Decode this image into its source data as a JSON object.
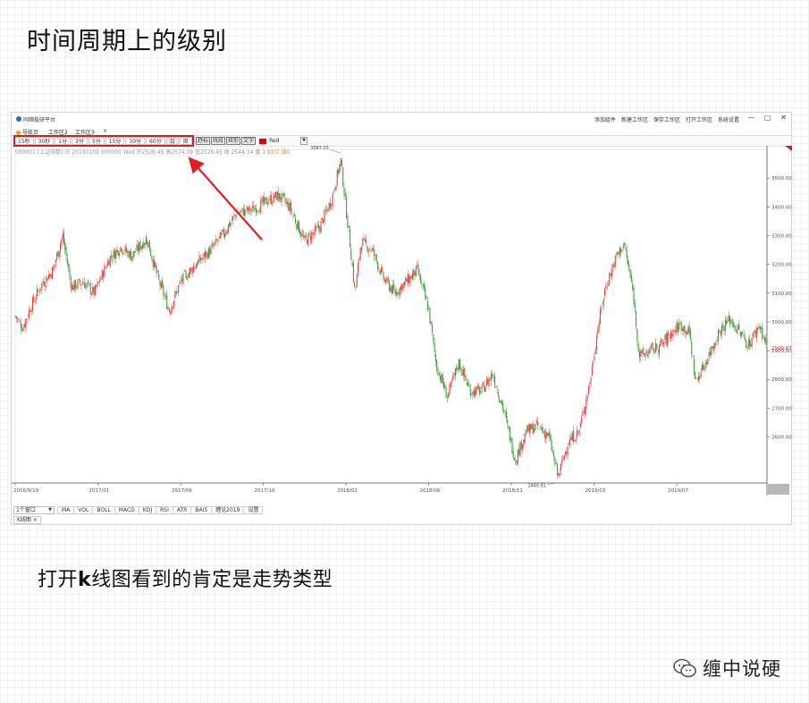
{
  "slide": {
    "title": "时间周期上的级别",
    "caption_pre": "打开",
    "caption_k": "k",
    "caption_post": "线图看到的肯定是走势类型",
    "footer": "缠中说硬"
  },
  "app": {
    "name": "同顺投研平台",
    "menu": [
      "添加组件",
      "新建工作区",
      "保存工作区",
      "打开工作区",
      "系统设置"
    ],
    "window_controls": [
      "—",
      "▢",
      "✕"
    ],
    "tabs": [
      "导航页",
      "工作区2",
      "工作区3"
    ],
    "tab_close": "×",
    "periods": [
      "15秒",
      "30秒",
      "1分",
      "3分",
      "5分",
      "15分",
      "30分",
      "60分",
      "日",
      "周"
    ],
    "active_period": "日",
    "tools": [
      "趋标",
      "线段",
      "矩形",
      "文字"
    ],
    "color_value": "Red",
    "dropdown_arrow": "▼",
    "info_line": "000001 [上证指数] 日 20190109 000000 Wed 开2528.45 高2574.39 低2526.45 收 2544.34 量",
    "info_highlight": "1.91亿 涨0",
    "window_select": "1个窗口",
    "indicators": [
      "MA",
      "VOL",
      "BOLL",
      "MACD",
      "KDJ",
      "RSI",
      "ATR",
      "BAIS",
      "缠论2019",
      "设置"
    ],
    "bottom_tab": "K线图",
    "bottom_tab_close": "×"
  },
  "chart_data": {
    "type": "candlestick",
    "title": "",
    "y_ticks": [
      2600,
      2700,
      2800,
      2900,
      3000,
      3100,
      3200,
      3300,
      3400,
      3500
    ],
    "y_tick_labels": [
      "2600.00",
      "2700.00",
      "2800.00",
      "2900.00",
      "3000.00",
      "3100.00",
      "3200.00",
      "3300.00",
      "3400.00",
      "3500.00"
    ],
    "ylim": [
      2440,
      3600
    ],
    "x_labels": [
      "2016/9/19",
      "2017/01",
      "2017/06",
      "2017/10",
      "2018/02",
      "2018/06",
      "2018/11",
      "2019/03",
      "2019/07"
    ],
    "x_label_positions": [
      0,
      0.11,
      0.22,
      0.33,
      0.44,
      0.55,
      0.66,
      0.77,
      0.88
    ],
    "annotations": [
      {
        "text": "3587.03",
        "date_frac": 0.433,
        "value": 3587.03
      },
      {
        "text": "2440.91",
        "date_frac": 0.722,
        "value": 2440.91
      }
    ],
    "last_price": "2909.87",
    "last_value": 2909.87,
    "up_color": "#e83e3e",
    "down_color": "#3e9b3e",
    "series_close": [
      {
        "t": 0.0,
        "v": 3020
      },
      {
        "t": 0.01,
        "v": 2980
      },
      {
        "t": 0.02,
        "v": 3050
      },
      {
        "t": 0.035,
        "v": 3130
      },
      {
        "t": 0.05,
        "v": 3180
      },
      {
        "t": 0.063,
        "v": 3300
      },
      {
        "t": 0.075,
        "v": 3120
      },
      {
        "t": 0.09,
        "v": 3140
      },
      {
        "t": 0.105,
        "v": 3100
      },
      {
        "t": 0.125,
        "v": 3220
      },
      {
        "t": 0.14,
        "v": 3260
      },
      {
        "t": 0.155,
        "v": 3230
      },
      {
        "t": 0.175,
        "v": 3290
      },
      {
        "t": 0.19,
        "v": 3150
      },
      {
        "t": 0.205,
        "v": 3040
      },
      {
        "t": 0.22,
        "v": 3140
      },
      {
        "t": 0.24,
        "v": 3200
      },
      {
        "t": 0.26,
        "v": 3250
      },
      {
        "t": 0.275,
        "v": 3300
      },
      {
        "t": 0.295,
        "v": 3380
      },
      {
        "t": 0.315,
        "v": 3390
      },
      {
        "t": 0.335,
        "v": 3420
      },
      {
        "t": 0.35,
        "v": 3440
      },
      {
        "t": 0.365,
        "v": 3400
      },
      {
        "t": 0.385,
        "v": 3280
      },
      {
        "t": 0.405,
        "v": 3330
      },
      {
        "t": 0.42,
        "v": 3420
      },
      {
        "t": 0.433,
        "v": 3560
      },
      {
        "t": 0.445,
        "v": 3280
      },
      {
        "t": 0.452,
        "v": 3100
      },
      {
        "t": 0.46,
        "v": 3280
      },
      {
        "t": 0.475,
        "v": 3250
      },
      {
        "t": 0.49,
        "v": 3150
      },
      {
        "t": 0.505,
        "v": 3100
      },
      {
        "t": 0.52,
        "v": 3140
      },
      {
        "t": 0.535,
        "v": 3180
      },
      {
        "t": 0.55,
        "v": 3040
      },
      {
        "t": 0.56,
        "v": 2850
      },
      {
        "t": 0.575,
        "v": 2740
      },
      {
        "t": 0.59,
        "v": 2860
      },
      {
        "t": 0.605,
        "v": 2760
      },
      {
        "t": 0.62,
        "v": 2760
      },
      {
        "t": 0.635,
        "v": 2820
      },
      {
        "t": 0.65,
        "v": 2690
      },
      {
        "t": 0.665,
        "v": 2520
      },
      {
        "t": 0.68,
        "v": 2620
      },
      {
        "t": 0.695,
        "v": 2640
      },
      {
        "t": 0.71,
        "v": 2600
      },
      {
        "t": 0.722,
        "v": 2460
      },
      {
        "t": 0.735,
        "v": 2580
      },
      {
        "t": 0.75,
        "v": 2620
      },
      {
        "t": 0.765,
        "v": 2800
      },
      {
        "t": 0.775,
        "v": 2980
      },
      {
        "t": 0.785,
        "v": 3120
      },
      {
        "t": 0.8,
        "v": 3230
      },
      {
        "t": 0.81,
        "v": 3270
      },
      {
        "t": 0.822,
        "v": 3100
      },
      {
        "t": 0.83,
        "v": 2880
      },
      {
        "t": 0.845,
        "v": 2900
      },
      {
        "t": 0.86,
        "v": 2920
      },
      {
        "t": 0.872,
        "v": 2960
      },
      {
        "t": 0.885,
        "v": 2990
      },
      {
        "t": 0.897,
        "v": 2960
      },
      {
        "t": 0.905,
        "v": 2790
      },
      {
        "t": 0.92,
        "v": 2870
      },
      {
        "t": 0.935,
        "v": 2960
      },
      {
        "t": 0.95,
        "v": 3010
      },
      {
        "t": 0.965,
        "v": 2960
      },
      {
        "t": 0.975,
        "v": 2920
      },
      {
        "t": 0.99,
        "v": 2990
      },
      {
        "t": 1.0,
        "v": 2910
      }
    ]
  }
}
